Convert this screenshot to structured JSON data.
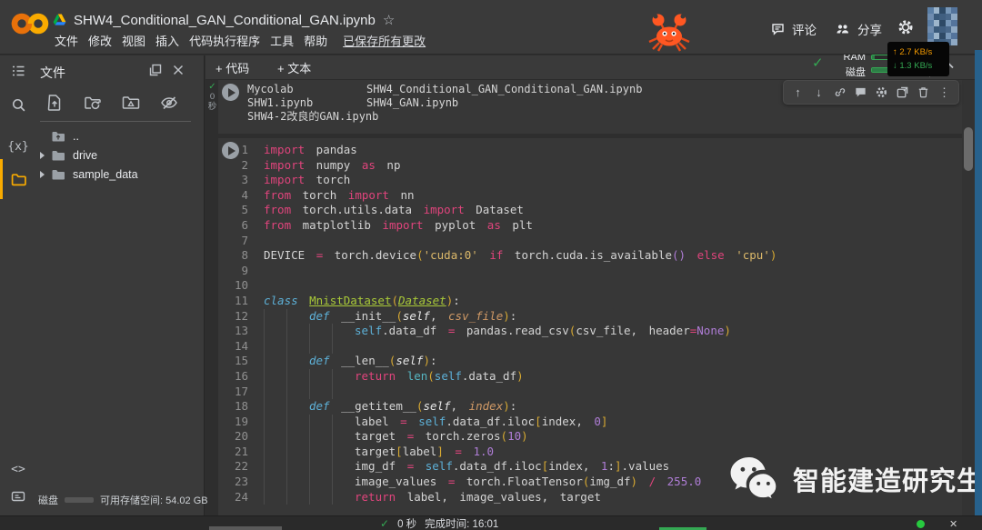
{
  "header": {
    "title": "SHW4_Conditional_GAN_Conditional_GAN.ipynb",
    "star": "☆",
    "menus": [
      "文件",
      "修改",
      "视图",
      "插入",
      "代码执行程序",
      "工具",
      "帮助"
    ],
    "saved_status": "已保存所有更改",
    "comment_label": "评论",
    "share_label": "分享",
    "icons": [
      "colab-logo",
      "drive-icon",
      "crab-emoji",
      "comment-icon",
      "people-icon",
      "gear-icon",
      "avatar"
    ]
  },
  "toolbar": {
    "add_code_label": "+ 代码",
    "add_text_label": "+ 文本",
    "ram_label": "RAM",
    "disk_label": "磁盘",
    "net_up": "↑ 2.7 KB/s",
    "net_down": "↓ 1.3 KB/s"
  },
  "sidebar": {
    "panel_title": "文件",
    "rail": {
      "variables_glyph": "{x}",
      "snippets_glyph": "<>"
    },
    "file_action_icons": [
      "upload-file-icon",
      "refresh-folder-icon",
      "mount-drive-icon",
      "hide-hidden-files-icon"
    ],
    "tree": [
      {
        "label": "..",
        "type": "up"
      },
      {
        "label": "drive",
        "type": "folder"
      },
      {
        "label": "sample_data",
        "type": "folder"
      }
    ],
    "disk_label": "磁盘",
    "disk_info": "可用存储空间: 54.02 GB"
  },
  "cell1": {
    "status": {
      "check": "✓",
      "time": "0",
      "unit": "秒"
    },
    "rows": [
      [
        "Mycolab",
        "SHW4_Conditional_GAN_Conditional_GAN.ipynb"
      ],
      [
        "SHW1.ipynb",
        "SHW4_GAN.ipynb"
      ],
      [
        "SHW4-2改良的GAN.ipynb",
        ""
      ]
    ]
  },
  "cell_toolbar": [
    "move-up",
    "move-down",
    "link",
    "comment",
    "settings",
    "open-in-tab",
    "delete",
    "more-vert"
  ],
  "code": {
    "lines": [
      {
        "n": 1,
        "i": 0,
        "s": [
          [
            "import",
            "kw"
          ],
          [
            " pandas",
            "id"
          ]
        ]
      },
      {
        "n": 2,
        "i": 0,
        "s": [
          [
            "import",
            "kw"
          ],
          [
            " numpy ",
            "id"
          ],
          [
            "as",
            "kw"
          ],
          [
            " np",
            "id"
          ]
        ]
      },
      {
        "n": 3,
        "i": 0,
        "s": [
          [
            "import",
            "kw"
          ],
          [
            " torch",
            "id"
          ]
        ]
      },
      {
        "n": 4,
        "i": 0,
        "s": [
          [
            "from",
            "kw"
          ],
          [
            " torch ",
            "id"
          ],
          [
            "import",
            "kw"
          ],
          [
            " nn",
            "id"
          ]
        ]
      },
      {
        "n": 5,
        "i": 0,
        "s": [
          [
            "from",
            "kw"
          ],
          [
            " torch.utils.data ",
            "id"
          ],
          [
            "import",
            "kw"
          ],
          [
            " Dataset",
            "id"
          ]
        ]
      },
      {
        "n": 6,
        "i": 0,
        "s": [
          [
            "from",
            "kw"
          ],
          [
            " matplotlib ",
            "id"
          ],
          [
            "import",
            "kw"
          ],
          [
            " pyplot ",
            "id"
          ],
          [
            "as",
            "kw"
          ],
          [
            " plt",
            "id"
          ]
        ]
      },
      {
        "n": 7,
        "i": 0,
        "s": []
      },
      {
        "n": 8,
        "i": 0,
        "s": [
          [
            "DEVICE ",
            "id"
          ],
          [
            "= ",
            "op"
          ],
          [
            "torch.device",
            "id"
          ],
          [
            "(",
            "b1"
          ],
          [
            "'cuda:0' ",
            "str"
          ],
          [
            "if",
            "kw"
          ],
          [
            " torch.cuda.is_available",
            "id"
          ],
          [
            "()",
            "b2"
          ],
          [
            " else ",
            "kw"
          ],
          [
            "'cpu'",
            "str"
          ],
          [
            ")",
            "b1"
          ]
        ]
      },
      {
        "n": 9,
        "i": 0,
        "s": []
      },
      {
        "n": 10,
        "i": 0,
        "s": []
      },
      {
        "n": 11,
        "i": 0,
        "s": [
          [
            "class ",
            "st"
          ],
          [
            "MnistDataset",
            "cn"
          ],
          [
            "(",
            "b1"
          ],
          [
            "Dataset",
            "cni"
          ],
          [
            ")",
            "b1"
          ],
          [
            ":",
            "id"
          ]
        ]
      },
      {
        "n": 12,
        "i": 2,
        "s": [
          [
            "def ",
            "st"
          ],
          [
            "__init__",
            "fn"
          ],
          [
            "(",
            "b1"
          ],
          [
            "self",
            "prs"
          ],
          [
            ", ",
            "id"
          ],
          [
            "csv_file",
            "pr"
          ],
          [
            ")",
            "b1"
          ],
          [
            ":",
            "id"
          ]
        ]
      },
      {
        "n": 13,
        "i": 4,
        "s": [
          [
            "self",
            "slf"
          ],
          [
            ".data_df ",
            "id"
          ],
          [
            "= ",
            "op"
          ],
          [
            "pandas.read_csv",
            "id"
          ],
          [
            "(",
            "b1"
          ],
          [
            "csv_file, header",
            "id"
          ],
          [
            "=",
            "op"
          ],
          [
            "None",
            "num"
          ],
          [
            ")",
            "b1"
          ]
        ]
      },
      {
        "n": 14,
        "i": 4,
        "s": []
      },
      {
        "n": 15,
        "i": 2,
        "s": [
          [
            "def ",
            "st"
          ],
          [
            "__len__",
            "fn"
          ],
          [
            "(",
            "b1"
          ],
          [
            "self",
            "prs"
          ],
          [
            ")",
            "b1"
          ],
          [
            ":",
            "id"
          ]
        ]
      },
      {
        "n": 16,
        "i": 4,
        "s": [
          [
            "return ",
            "kw"
          ],
          [
            "len",
            "bi"
          ],
          [
            "(",
            "b1"
          ],
          [
            "self",
            "slf"
          ],
          [
            ".data_df",
            "id"
          ],
          [
            ")",
            "b1"
          ]
        ]
      },
      {
        "n": 17,
        "i": 4,
        "s": []
      },
      {
        "n": 18,
        "i": 2,
        "s": [
          [
            "def ",
            "st"
          ],
          [
            "__getitem__",
            "fn"
          ],
          [
            "(",
            "b1"
          ],
          [
            "self",
            "prs"
          ],
          [
            ", ",
            "id"
          ],
          [
            "index",
            "pr"
          ],
          [
            ")",
            "b1"
          ],
          [
            ":",
            "id"
          ]
        ]
      },
      {
        "n": 19,
        "i": 4,
        "s": [
          [
            "label ",
            "id"
          ],
          [
            "= ",
            "op"
          ],
          [
            "self",
            "slf"
          ],
          [
            ".data_df.iloc",
            "id"
          ],
          [
            "[",
            "b1"
          ],
          [
            "index, ",
            "id"
          ],
          [
            "0",
            "num"
          ],
          [
            "]",
            "b1"
          ]
        ]
      },
      {
        "n": 20,
        "i": 4,
        "s": [
          [
            "target ",
            "id"
          ],
          [
            "= ",
            "op"
          ],
          [
            "torch.zeros",
            "id"
          ],
          [
            "(",
            "b1"
          ],
          [
            "10",
            "num"
          ],
          [
            ")",
            "b1"
          ]
        ]
      },
      {
        "n": 21,
        "i": 4,
        "s": [
          [
            "target",
            "id"
          ],
          [
            "[",
            "b1"
          ],
          [
            "label",
            "id"
          ],
          [
            "] ",
            "b1"
          ],
          [
            "= ",
            "op"
          ],
          [
            "1.0",
            "num"
          ]
        ]
      },
      {
        "n": 22,
        "i": 4,
        "s": [
          [
            "img_df ",
            "id"
          ],
          [
            "= ",
            "op"
          ],
          [
            "self",
            "slf"
          ],
          [
            ".data_df.iloc",
            "id"
          ],
          [
            "[",
            "b1"
          ],
          [
            "index, ",
            "id"
          ],
          [
            "1",
            "num"
          ],
          [
            ":",
            "id"
          ],
          [
            "]",
            "b1"
          ],
          [
            ".values",
            "id"
          ]
        ]
      },
      {
        "n": 23,
        "i": 4,
        "s": [
          [
            "image_values ",
            "id"
          ],
          [
            "= ",
            "op"
          ],
          [
            "torch.FloatTensor",
            "id"
          ],
          [
            "(",
            "b1"
          ],
          [
            "img_df",
            "id"
          ],
          [
            ") ",
            "b1"
          ],
          [
            "/ ",
            "op"
          ],
          [
            "255.0",
            "num"
          ]
        ]
      },
      {
        "n": 24,
        "i": 4,
        "s": [
          [
            "return ",
            "kw"
          ],
          [
            "label, image_values, target",
            "id"
          ]
        ]
      }
    ]
  },
  "statusbar": {
    "check": "✓",
    "duration": "0 秒",
    "completed": "完成时间: 16:01",
    "close_glyph": "✕"
  },
  "watermark": {
    "text": "智能建造研究生",
    "icon": "wechat-icon"
  },
  "colors": {
    "accent_orange": "#f9ab00",
    "green": "#34a853",
    "blue_edge": "#27618c",
    "keyword_pink": "#e0447c"
  }
}
